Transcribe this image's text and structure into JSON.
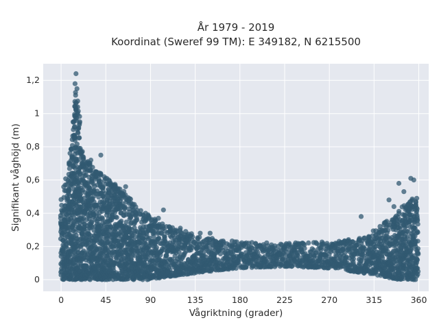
{
  "chart_data": {
    "type": "scatter",
    "title_line1": "År 1979 - 2019",
    "title_line2": "Koordinat (Sweref 99 TM): E 349182, N 6215500",
    "xlabel": "Vågriktning (grader)",
    "ylabel": "Signifikant våghöjd (m)",
    "xlim": [
      -18,
      370
    ],
    "ylim": [
      -0.07,
      1.3
    ],
    "xticks": [
      0,
      45,
      90,
      135,
      180,
      225,
      270,
      315,
      360
    ],
    "xtick_labels": [
      "0",
      "45",
      "90",
      "135",
      "180",
      "225",
      "270",
      "315",
      "360"
    ],
    "yticks": [
      0,
      0.2,
      0.4,
      0.6,
      0.8,
      1.0,
      1.2
    ],
    "ytick_labels": [
      "0",
      "0,2",
      "0,4",
      "0,6",
      "0,8",
      "1",
      "1,2"
    ],
    "grid": true,
    "colors": {
      "background": "#e5e8ef",
      "grid": "#ffffff",
      "marker": "#325a72"
    },
    "marker_opacity": 0.75,
    "upper_envelope": [
      [
        0,
        0.5
      ],
      [
        5,
        0.62
      ],
      [
        10,
        0.8
      ],
      [
        13,
        1.0
      ],
      [
        15,
        1.24
      ],
      [
        17,
        1.1
      ],
      [
        20,
        0.82
      ],
      [
        25,
        0.72
      ],
      [
        30,
        0.7
      ],
      [
        40,
        0.65
      ],
      [
        50,
        0.6
      ],
      [
        60,
        0.55
      ],
      [
        70,
        0.5
      ],
      [
        80,
        0.42
      ],
      [
        90,
        0.38
      ],
      [
        100,
        0.35
      ],
      [
        110,
        0.32
      ],
      [
        120,
        0.3
      ],
      [
        135,
        0.27
      ],
      [
        150,
        0.25
      ],
      [
        180,
        0.23
      ],
      [
        225,
        0.22
      ],
      [
        270,
        0.23
      ],
      [
        300,
        0.25
      ],
      [
        315,
        0.3
      ],
      [
        330,
        0.37
      ],
      [
        345,
        0.45
      ],
      [
        355,
        0.5
      ],
      [
        360,
        0.47
      ]
    ],
    "lower_envelope": [
      [
        0,
        0.0
      ],
      [
        45,
        0.0
      ],
      [
        90,
        0.0
      ],
      [
        110,
        0.02
      ],
      [
        135,
        0.04
      ],
      [
        180,
        0.07
      ],
      [
        225,
        0.08
      ],
      [
        270,
        0.07
      ],
      [
        315,
        0.03
      ],
      [
        340,
        0.0
      ],
      [
        360,
        0.0
      ]
    ],
    "outliers": [
      [
        15,
        1.24
      ],
      [
        14,
        1.18
      ],
      [
        16,
        1.15
      ],
      [
        12,
        0.95
      ],
      [
        40,
        0.75
      ],
      [
        30,
        0.72
      ],
      [
        65,
        0.56
      ],
      [
        48,
        0.6
      ],
      [
        103,
        0.42
      ],
      [
        98,
        0.37
      ],
      [
        120,
        0.31
      ],
      [
        140,
        0.28
      ],
      [
        150,
        0.28
      ],
      [
        302,
        0.38
      ],
      [
        330,
        0.48
      ],
      [
        340,
        0.58
      ],
      [
        345,
        0.53
      ],
      [
        352,
        0.61
      ],
      [
        355,
        0.6
      ],
      [
        358,
        0.49
      ],
      [
        350,
        0.45
      ],
      [
        325,
        0.33
      ],
      [
        335,
        0.44
      ],
      [
        110,
        0.3
      ],
      [
        85,
        0.4
      ],
      [
        20,
        0.6
      ]
    ]
  }
}
